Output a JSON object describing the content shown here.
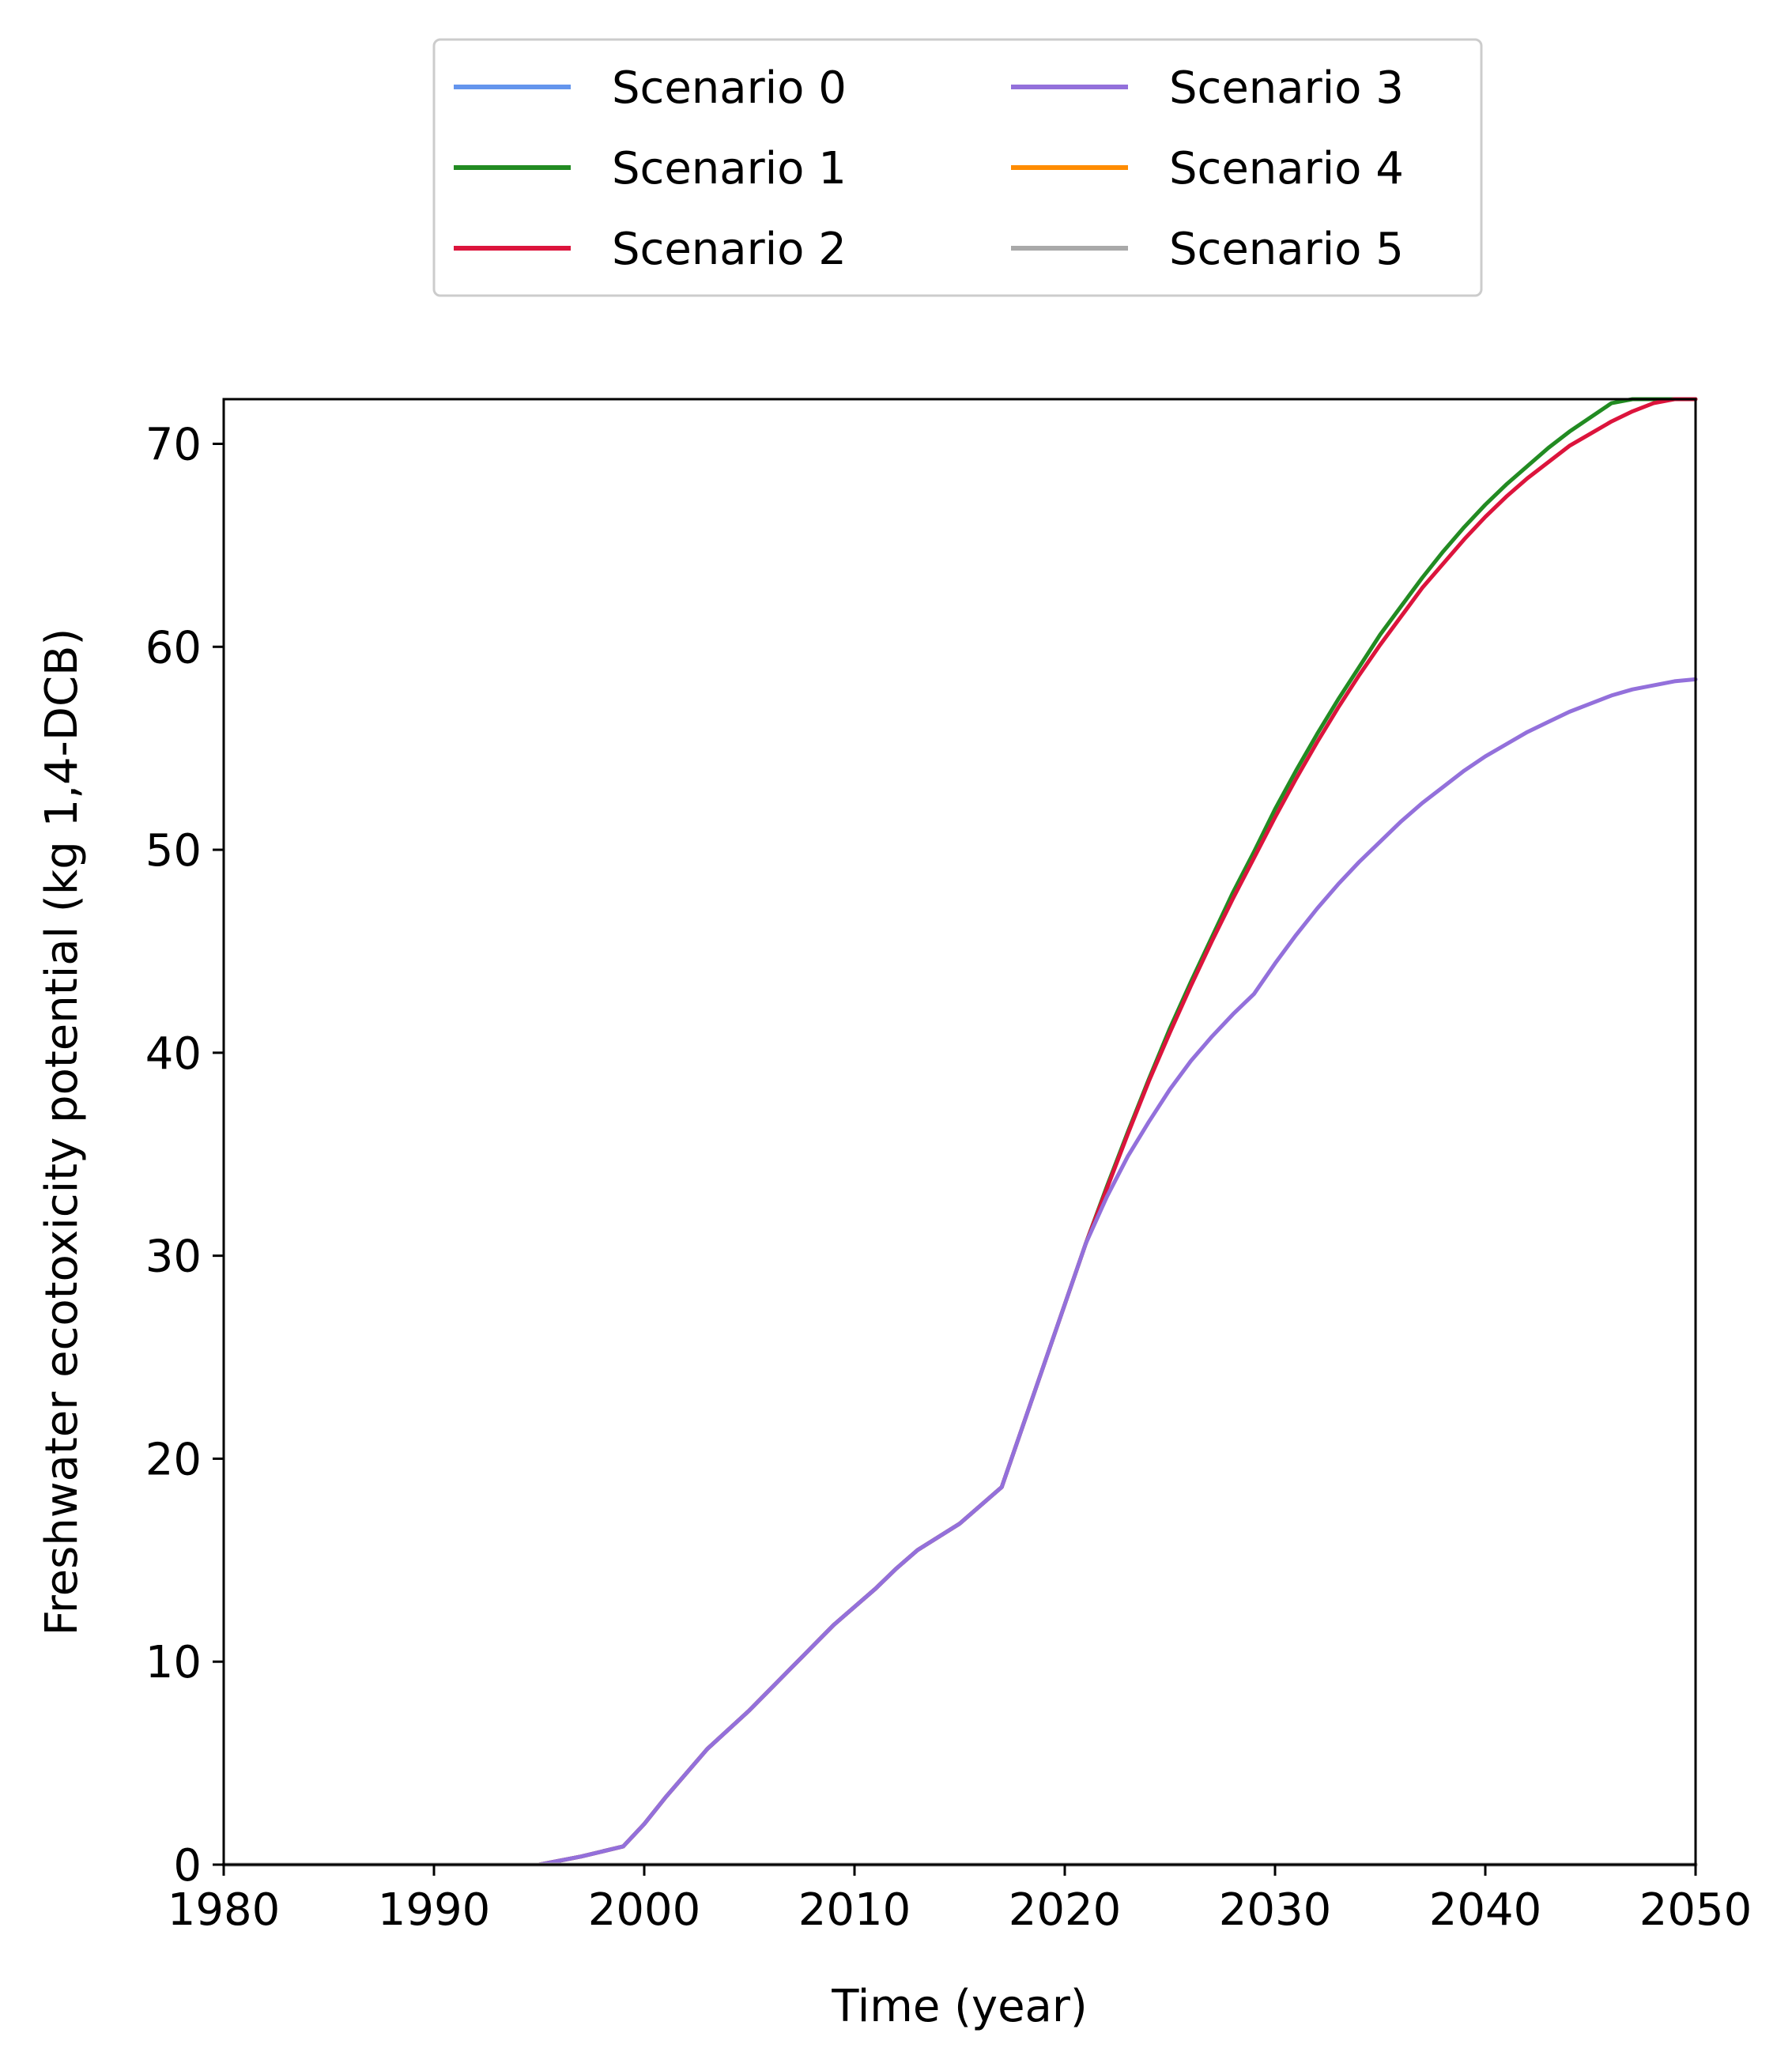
{
  "chart_data": {
    "type": "line",
    "title": "",
    "xlabel": "Time (year)",
    "ylabel": "Freshwater ecotoxicity potential (kg 1,4-DCB)",
    "xlim": [
      1980,
      2050
    ],
    "ylim": [
      0,
      72.2
    ],
    "xticks": [
      1980,
      1990,
      2000,
      2010,
      2020,
      2030,
      2040,
      2050
    ],
    "yticks": [
      0,
      10,
      20,
      30,
      40,
      50,
      60,
      70
    ],
    "grid": false,
    "legend": {
      "placement": "top-center, above plot",
      "columns": 2
    },
    "x": [
      1980,
      1985,
      1990,
      1995,
      1997,
      1999,
      2000,
      2001,
      2003,
      2005,
      2007,
      2009,
      2011,
      2012,
      2013,
      2015,
      2017,
      2019,
      2021,
      2022,
      2023,
      2024,
      2025,
      2026,
      2027,
      2028,
      2029,
      2030,
      2031,
      2032,
      2033,
      2034,
      2035,
      2036,
      2037,
      2038,
      2039,
      2040,
      2041,
      2042,
      2043,
      2044,
      2045,
      2046,
      2047,
      2048,
      2049,
      2050
    ],
    "series": [
      {
        "name": "Scenario 0",
        "color": "#6495ED",
        "values": [
          0,
          0,
          0,
          0,
          0,
          0,
          0,
          0,
          0,
          0,
          0,
          0,
          0,
          0,
          0,
          0,
          0,
          0,
          0,
          0,
          0,
          0,
          0,
          0,
          0,
          0,
          0,
          0,
          0,
          0,
          0,
          0,
          0,
          0,
          0,
          0,
          0,
          0,
          0,
          0,
          0,
          0,
          0,
          0,
          0,
          0,
          0,
          0
        ]
      },
      {
        "name": "Scenario 1",
        "color": "#228B22",
        "values": [
          0,
          0,
          0,
          0,
          0.4,
          0.9,
          2.0,
          3.3,
          5.7,
          7.6,
          9.7,
          11.8,
          13.6,
          14.6,
          15.5,
          16.8,
          18.6,
          24.6,
          30.6,
          33.4,
          36.1,
          38.7,
          41.2,
          43.5,
          45.7,
          47.9,
          49.9,
          52.0,
          53.9,
          55.7,
          57.4,
          59.0,
          60.6,
          62.0,
          63.4,
          64.7,
          65.9,
          67.0,
          68.0,
          68.9,
          69.8,
          70.6,
          71.3,
          72.0,
          72.6,
          73.1,
          73.5,
          73.9
        ]
      },
      {
        "name": "Scenario 2",
        "color": "#DC143C",
        "values": [
          0,
          0,
          0,
          0,
          0.4,
          0.9,
          2.0,
          3.3,
          5.7,
          7.6,
          9.7,
          11.8,
          13.6,
          14.6,
          15.5,
          16.8,
          18.6,
          24.6,
          30.6,
          33.3,
          36.0,
          38.6,
          41.0,
          43.3,
          45.5,
          47.6,
          49.6,
          51.6,
          53.5,
          55.3,
          57.0,
          58.6,
          60.1,
          61.5,
          62.9,
          64.1,
          65.3,
          66.4,
          67.4,
          68.3,
          69.1,
          69.9,
          70.5,
          71.1,
          71.6,
          72.0,
          72.2,
          72.3
        ]
      },
      {
        "name": "Scenario 3",
        "color": "#9370DB",
        "values": [
          0,
          0,
          0,
          0,
          0.4,
          0.9,
          2.0,
          3.3,
          5.7,
          7.6,
          9.7,
          11.8,
          13.6,
          14.6,
          15.5,
          16.8,
          18.6,
          24.6,
          30.6,
          32.9,
          34.9,
          36.6,
          38.2,
          39.6,
          40.8,
          41.9,
          42.9,
          44.4,
          45.8,
          47.1,
          48.3,
          49.4,
          50.4,
          51.4,
          52.3,
          53.1,
          53.9,
          54.6,
          55.2,
          55.8,
          56.3,
          56.8,
          57.2,
          57.6,
          57.9,
          58.1,
          58.3,
          58.4
        ]
      },
      {
        "name": "Scenario 4",
        "color": "#FF8C00",
        "values": [
          0,
          0,
          0,
          0,
          0,
          0,
          0,
          0,
          0,
          0,
          0,
          0,
          0,
          0,
          0,
          0,
          0,
          0,
          0,
          0,
          0,
          0,
          0,
          0,
          0,
          0,
          0,
          0,
          0,
          0,
          0,
          0,
          0,
          0,
          0,
          0,
          0,
          0,
          0,
          0,
          0,
          0,
          0,
          0,
          0,
          0,
          0,
          0
        ]
      },
      {
        "name": "Scenario 5",
        "color": "#A9A9A9",
        "values": [
          0,
          0,
          0,
          0,
          0,
          0,
          0,
          0,
          0,
          0,
          0,
          0,
          0,
          0,
          0,
          0,
          0,
          0,
          0,
          0,
          0,
          0,
          0,
          0,
          0,
          0,
          0,
          0,
          0,
          0,
          0,
          0,
          0,
          0,
          0,
          0,
          0,
          0,
          0,
          0,
          0,
          0,
          0,
          0,
          0,
          0,
          0,
          0
        ]
      }
    ]
  }
}
